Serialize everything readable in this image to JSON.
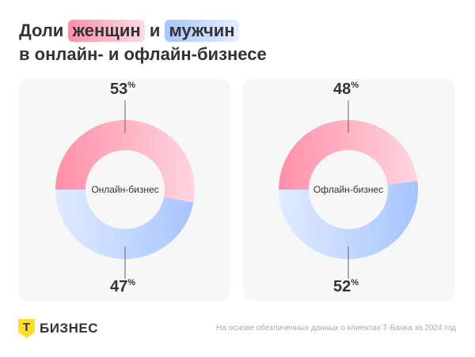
{
  "title": {
    "part1": "Доли",
    "women": "женщин",
    "and": "и",
    "men": "мужчин",
    "line2": "в онлайн- и офлайн-бизнесе"
  },
  "colors": {
    "women_from": "#ff8fa8",
    "women_to": "#ffd6e0",
    "men_from": "#e0ebff",
    "men_to": "#a8c4ff"
  },
  "chart_data": [
    {
      "type": "pie",
      "center_label": "Онлайн-бизнес",
      "series": [
        {
          "name": "женщин",
          "value": 53,
          "label": "53"
        },
        {
          "name": "мужчин",
          "value": 47,
          "label": "47"
        }
      ],
      "unit": "%"
    },
    {
      "type": "pie",
      "center_label": "Офлайн-бизнес",
      "series": [
        {
          "name": "женщин",
          "value": 48,
          "label": "48"
        },
        {
          "name": "мужчин",
          "value": 52,
          "label": "52"
        }
      ],
      "unit": "%"
    }
  ],
  "footer": {
    "logo_letter": "Т",
    "brand": "БИЗНЕС",
    "note": "На основе обезличенных данных о клиентах Т-Банка за 2024 год"
  }
}
